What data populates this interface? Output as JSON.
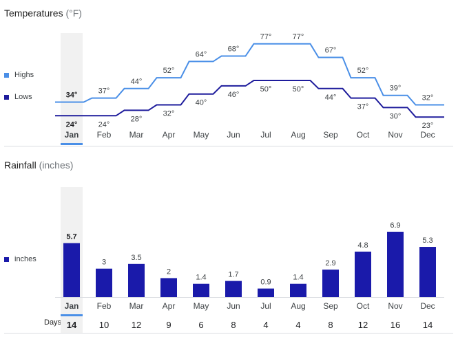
{
  "temperature": {
    "title": "Temperatures",
    "unit": "(°F)",
    "legend": [
      {
        "label": "Highs",
        "color": "#4a8fe7"
      },
      {
        "label": "Lows",
        "color": "#1e1c9c"
      }
    ]
  },
  "rainfall": {
    "title": "Rainfall",
    "unit": "(inches)",
    "legend": [
      {
        "label": "inches",
        "color": "#1a1aaa"
      }
    ],
    "days_label": "Days"
  },
  "selected_month_index": 0,
  "accent_color": "#4a8fe7",
  "chart_data": [
    {
      "type": "line",
      "title": "Temperatures (°F)",
      "categories": [
        "Jan",
        "Feb",
        "Mar",
        "Apr",
        "May",
        "Jun",
        "Jul",
        "Aug",
        "Sep",
        "Oct",
        "Nov",
        "Dec"
      ],
      "series": [
        {
          "name": "Highs",
          "values": [
            34,
            37,
            44,
            52,
            64,
            68,
            77,
            77,
            67,
            52,
            39,
            32
          ],
          "labels": [
            "34°",
            "37°",
            "44°",
            "52°",
            "64°",
            "68°",
            "77°",
            "77°",
            "67°",
            "52°",
            "39°",
            "32°"
          ],
          "color": "#4a8fe7"
        },
        {
          "name": "Lows",
          "values": [
            24,
            24,
            28,
            32,
            40,
            46,
            50,
            50,
            44,
            37,
            30,
            23
          ],
          "labels": [
            "24°",
            "24°",
            "28°",
            "32°",
            "40°",
            "46°",
            "50°",
            "50°",
            "44°",
            "37°",
            "30°",
            "23°"
          ],
          "color": "#1e1c9c"
        }
      ],
      "ylim": [
        15,
        85
      ]
    },
    {
      "type": "bar",
      "title": "Rainfall (inches)",
      "categories": [
        "Jan",
        "Feb",
        "Mar",
        "Apr",
        "May",
        "Jun",
        "Jul",
        "Aug",
        "Sep",
        "Oct",
        "Nov",
        "Dec"
      ],
      "values": [
        5.7,
        3,
        3.5,
        2,
        1.4,
        1.7,
        0.9,
        1.4,
        2.9,
        4.8,
        6.9,
        5.3
      ],
      "labels": [
        "5.7",
        "3",
        "3.5",
        "2",
        "1.4",
        "1.7",
        "0.9",
        "1.4",
        "2.9",
        "4.8",
        "6.9",
        "5.3"
      ],
      "days": [
        14,
        10,
        12,
        9,
        6,
        8,
        4,
        4,
        8,
        12,
        16,
        14
      ],
      "ylim": [
        0,
        8
      ]
    }
  ]
}
